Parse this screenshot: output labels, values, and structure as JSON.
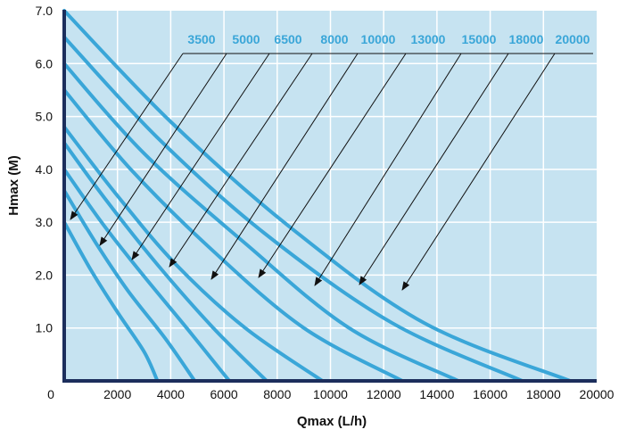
{
  "chart_data": {
    "type": "line",
    "title": "",
    "xlabel": "Qmax (L/h)",
    "ylabel": "Hmax (M)",
    "xlim": [
      0,
      20000
    ],
    "ylim": [
      0,
      7
    ],
    "x_ticks": [
      "0",
      "2000",
      "4000",
      "6000",
      "8000",
      "10000",
      "12000",
      "14000",
      "16000",
      "18000",
      "20000"
    ],
    "y_ticks": [
      "1.0",
      "2.0",
      "3.0",
      "4.0",
      "5.0",
      "6.0",
      "7.0"
    ],
    "grid": true,
    "colors": {
      "plot_background": "#c6e3f1",
      "grid": "#ffffff",
      "series_line": "#3aa6d8",
      "axis": "#1c2e5c",
      "label_text": "#3aa6d8",
      "leader_line": "#111111"
    },
    "series": [
      {
        "name": "3500",
        "points": [
          [
            0,
            3.0
          ],
          [
            1000,
            2.1
          ],
          [
            2000,
            1.3
          ],
          [
            3000,
            0.55
          ],
          [
            3500,
            0
          ]
        ]
      },
      {
        "name": "5000",
        "points": [
          [
            0,
            3.6
          ],
          [
            1200,
            2.6
          ],
          [
            2400,
            1.7
          ],
          [
            3800,
            0.8
          ],
          [
            4900,
            0
          ]
        ]
      },
      {
        "name": "6500",
        "points": [
          [
            0,
            4.0
          ],
          [
            1400,
            3.0
          ],
          [
            2800,
            2.1
          ],
          [
            4600,
            1.0
          ],
          [
            6200,
            0
          ]
        ]
      },
      {
        "name": "8000",
        "points": [
          [
            0,
            4.5
          ],
          [
            1600,
            3.4
          ],
          [
            3500,
            2.2
          ],
          [
            5600,
            1.0
          ],
          [
            7600,
            0
          ]
        ]
      },
      {
        "name": "10000",
        "points": [
          [
            0,
            4.8
          ],
          [
            2000,
            3.5
          ],
          [
            4200,
            2.2
          ],
          [
            6800,
            1.0
          ],
          [
            9700,
            0
          ]
        ]
      },
      {
        "name": "13000",
        "points": [
          [
            0,
            5.5
          ],
          [
            2500,
            4.0
          ],
          [
            5500,
            2.5
          ],
          [
            9000,
            1.0
          ],
          [
            12700,
            0
          ]
        ]
      },
      {
        "name": "15000",
        "points": [
          [
            0,
            6.0
          ],
          [
            3000,
            4.3
          ],
          [
            6800,
            2.6
          ],
          [
            10700,
            1.0
          ],
          [
            14800,
            0
          ]
        ]
      },
      {
        "name": "18000",
        "points": [
          [
            0,
            6.5
          ],
          [
            3500,
            4.6
          ],
          [
            7500,
            2.8
          ],
          [
            12300,
            1.1
          ],
          [
            17200,
            0
          ]
        ]
      },
      {
        "name": "20000",
        "points": [
          [
            0,
            7.0
          ],
          [
            4000,
            4.9
          ],
          [
            8500,
            2.9
          ],
          [
            13500,
            1.1
          ],
          [
            19000,
            0
          ]
        ]
      }
    ]
  }
}
